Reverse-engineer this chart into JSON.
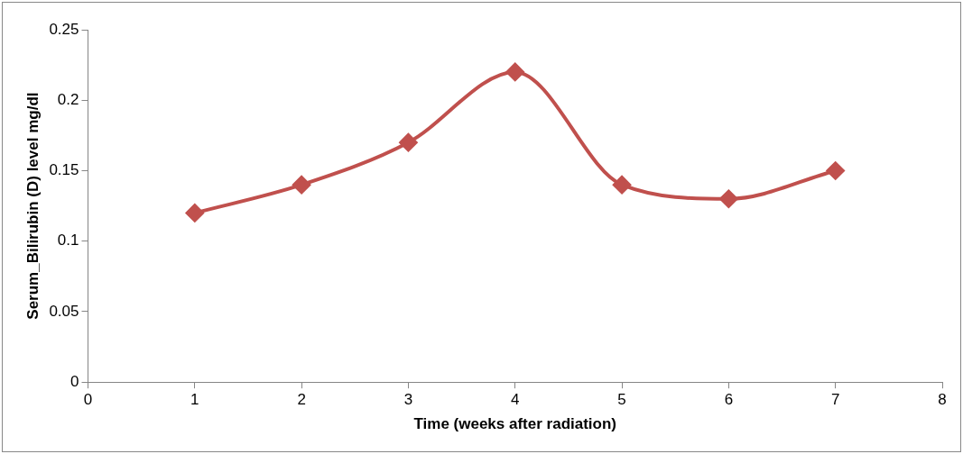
{
  "chart_data": {
    "type": "line",
    "xlabel": "Time (weeks after radiation)",
    "ylabel": "Serum_Bilirubin (D) level mg/dl",
    "x": [
      1,
      2,
      3,
      4,
      5,
      6,
      7
    ],
    "series": [
      {
        "color": "#c0504d",
        "values": [
          0.12,
          0.14,
          0.17,
          0.22,
          0.14,
          0.13,
          0.15
        ]
      }
    ],
    "xlim": [
      0,
      8
    ],
    "xticks": [
      0,
      1,
      2,
      3,
      4,
      5,
      6,
      7,
      8
    ],
    "ylim": [
      0,
      0.25
    ],
    "yticks": [
      0,
      0.05,
      0.1,
      0.15,
      0.2,
      0.25
    ],
    "grid": false,
    "legend": false,
    "marker": "diamond",
    "line_style": "solid"
  }
}
